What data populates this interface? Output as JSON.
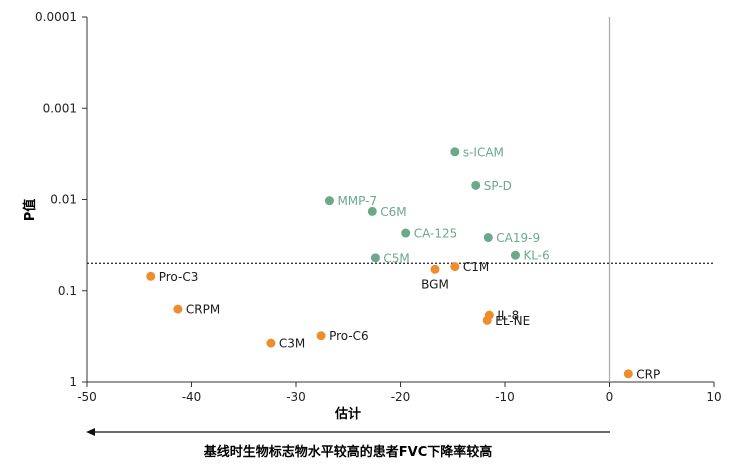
{
  "chart_data": {
    "type": "scatter",
    "xlabel": "估计",
    "ylabel": "P值",
    "xlim": [
      -50,
      10
    ],
    "xticks": [
      -50,
      -40,
      -30,
      -20,
      -10,
      0,
      10
    ],
    "y_scale": "log",
    "y_inverted": true,
    "ylim": [
      0.0001,
      1
    ],
    "yticks": [
      {
        "value": 0.0001,
        "label": "0.0001"
      },
      {
        "value": 0.001,
        "label": "0.001"
      },
      {
        "value": 0.01,
        "label": "0.01"
      },
      {
        "value": 0.1,
        "label": "0.1"
      },
      {
        "value": 1,
        "label": "1"
      }
    ],
    "significance_line_p": 0.05,
    "zero_line_x": 0,
    "grid": false,
    "colors": {
      "significant": "#6aaa8a",
      "not_significant": "#ee8e2a"
    },
    "points": [
      {
        "label": "s-ICAM",
        "x": -14.8,
        "p": 0.003,
        "group": "significant",
        "label_pos": "right"
      },
      {
        "label": "SP-D",
        "x": -12.8,
        "p": 0.007,
        "group": "significant",
        "label_pos": "right"
      },
      {
        "label": "MMP-7",
        "x": -26.8,
        "p": 0.0103,
        "group": "significant",
        "label_pos": "right"
      },
      {
        "label": "C6M",
        "x": -22.7,
        "p": 0.0135,
        "group": "significant",
        "label_pos": "right"
      },
      {
        "label": "CA-125",
        "x": -19.5,
        "p": 0.0233,
        "group": "significant",
        "label_pos": "right"
      },
      {
        "label": "CA19-9",
        "x": -11.6,
        "p": 0.0261,
        "group": "significant",
        "label_pos": "right"
      },
      {
        "label": "KL-6",
        "x": -9.0,
        "p": 0.0408,
        "group": "significant",
        "label_pos": "right"
      },
      {
        "label": "C5M",
        "x": -22.4,
        "p": 0.0436,
        "group": "significant",
        "label_pos": "right"
      },
      {
        "label": "C1M",
        "x": -14.8,
        "p": 0.0544,
        "group": "not_significant",
        "label_pos": "right"
      },
      {
        "label": "BGM",
        "x": -16.7,
        "p": 0.0582,
        "group": "not_significant",
        "label_pos": "below"
      },
      {
        "label": "Pro-C3",
        "x": -43.9,
        "p": 0.0694,
        "group": "not_significant",
        "label_pos": "right"
      },
      {
        "label": "CRPM",
        "x": -41.3,
        "p": 0.159,
        "group": "not_significant",
        "label_pos": "right"
      },
      {
        "label": "IL-8",
        "x": -11.5,
        "p": 0.185,
        "group": "not_significant",
        "label_pos": "right"
      },
      {
        "label": "EL-NE",
        "x": -11.7,
        "p": 0.211,
        "group": "not_significant",
        "label_pos": "right"
      },
      {
        "label": "Pro-C6",
        "x": -27.6,
        "p": 0.311,
        "group": "not_significant",
        "label_pos": "right"
      },
      {
        "label": "C3M",
        "x": -32.4,
        "p": 0.375,
        "group": "not_significant",
        "label_pos": "right"
      },
      {
        "label": "CRP",
        "x": 1.8,
        "p": 0.814,
        "group": "not_significant",
        "label_pos": "right"
      }
    ],
    "bottom_annotation": "基线时生物标志物水平较高的患者FVC下降率较高"
  }
}
